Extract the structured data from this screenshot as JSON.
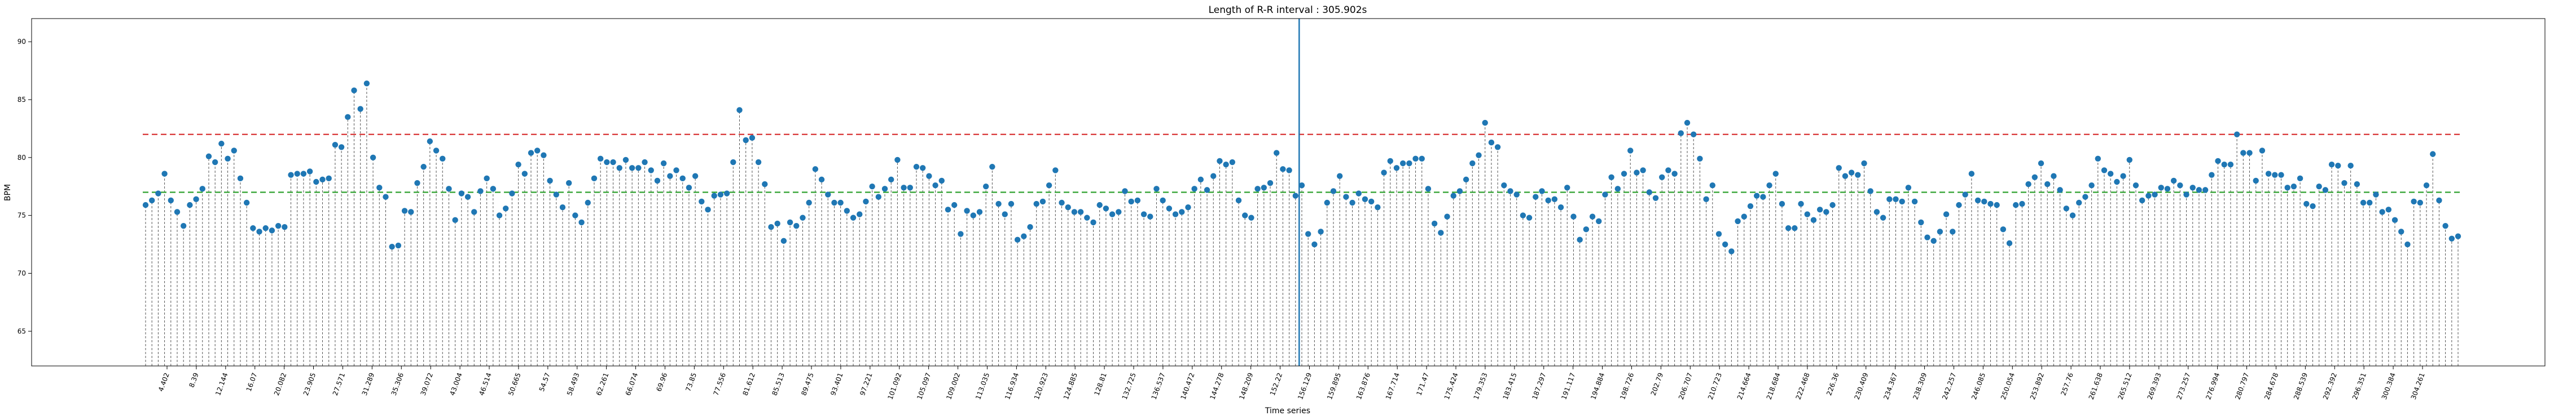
{
  "chart_data": {
    "type": "stem",
    "title": "Length of R-R interval : 305.902s",
    "xlabel": "Time series",
    "ylabel": "BPM",
    "ylim": [
      62,
      92
    ],
    "xlim": [
      0.2,
      305.9
    ],
    "yticks": [
      65,
      70,
      75,
      80,
      85,
      90
    ],
    "xticks": [
      "4.402",
      "8.39",
      "12.144",
      "16.07",
      "20.082",
      "23.905",
      "27.571",
      "31.289",
      "35.306",
      "39.072",
      "43.004",
      "46.514",
      "50.665",
      "54.57",
      "58.493",
      "62.261",
      "66.074",
      "69.96",
      "73.85",
      "77.556",
      "81.612",
      "85.513",
      "89.475",
      "93.401",
      "97.221",
      "101.092",
      "105.097",
      "109.002",
      "113.035",
      "116.934",
      "120.923",
      "124.885",
      "128.81",
      "132.725",
      "136.537",
      "140.472",
      "144.278",
      "148.209",
      "152.22",
      "156.129",
      "159.895",
      "163.876",
      "167.714",
      "171.47",
      "175.424",
      "179.353",
      "183.415",
      "187.297",
      "191.117",
      "194.884",
      "198.726",
      "202.79",
      "206.707",
      "210.723",
      "214.664",
      "218.684",
      "222.468",
      "226.36",
      "230.409",
      "234.367",
      "238.309",
      "242.257",
      "246.085",
      "250.054",
      "253.892",
      "257.76",
      "261.638",
      "265.512",
      "269.393",
      "273.257",
      "276.994",
      "280.797",
      "284.678",
      "288.539",
      "292.392",
      "296.351",
      "300.384",
      "304.261"
    ],
    "reference_lines": {
      "upper": {
        "value": 82,
        "color": "#d62728",
        "style": "dashed"
      },
      "mean": {
        "value": 77,
        "color": "#2ca02c",
        "style": "dashed"
      },
      "marker": {
        "x": 152.7,
        "color": "#1f77b4"
      }
    },
    "series": [
      {
        "x_start": 0.2,
        "x_end": 305.9,
        "color": "#1f77b4",
        "values": [
          75.9,
          76.3,
          76.9,
          78.6,
          76.3,
          75.3,
          74.1,
          75.9,
          76.4,
          77.3,
          80.1,
          79.6,
          81.2,
          79.9,
          80.6,
          78.2,
          76.1,
          73.9,
          73.6,
          73.9,
          73.7,
          74.1,
          74.0,
          78.5,
          78.6,
          78.6,
          78.8,
          77.9,
          78.1,
          78.2,
          81.1,
          80.9,
          83.5,
          85.8,
          84.2,
          86.4,
          80.0,
          77.4,
          76.6,
          72.3,
          72.4,
          75.4,
          75.3,
          77.8,
          79.2,
          81.4,
          80.6,
          79.9,
          77.3,
          74.6,
          76.9,
          76.6,
          75.3,
          77.1,
          78.2,
          77.3,
          75.0,
          75.6,
          76.9,
          79.4,
          78.6,
          80.4,
          80.6,
          80.2,
          78.0,
          76.8,
          75.7,
          77.8,
          75.0,
          74.4,
          76.1,
          78.2,
          79.9,
          79.6,
          79.6,
          79.1,
          79.8,
          79.1,
          79.1,
          79.6,
          78.9,
          78.0,
          79.5,
          78.4,
          78.9,
          78.2,
          77.4,
          78.4,
          76.2,
          75.5,
          76.7,
          76.8,
          76.9,
          79.6,
          84.1,
          81.5,
          81.7,
          79.6,
          77.7,
          74.0,
          74.3,
          72.8,
          74.4,
          74.1,
          74.8,
          76.1,
          79.0,
          78.1,
          76.8,
          76.1,
          76.1,
          75.4,
          74.8,
          75.1,
          76.2,
          77.5,
          76.6,
          77.3,
          78.1,
          79.8,
          77.4,
          77.4,
          79.2,
          79.1,
          78.4,
          77.6,
          78.0,
          75.5,
          75.9,
          73.4,
          75.4,
          75.0,
          75.3,
          77.5,
          79.2,
          76.0,
          75.1,
          76.0,
          72.9,
          73.2,
          74.0,
          76.0,
          76.2,
          77.6,
          78.9,
          76.1,
          75.7,
          75.3,
          75.3,
          74.8,
          74.4,
          75.9,
          75.6,
          75.1,
          75.3,
          77.1,
          76.2,
          76.3,
          75.1,
          74.9,
          77.3,
          76.3,
          75.6,
          75.1,
          75.3,
          75.7,
          77.3,
          78.1,
          77.2,
          78.4,
          79.7,
          79.4,
          79.6,
          76.3,
          75.0,
          74.8,
          77.3,
          77.4,
          77.8,
          80.4,
          79.0,
          78.9,
          76.7,
          77.6,
          73.4,
          72.5,
          73.6,
          76.1,
          77.1,
          78.4,
          76.6,
          76.1,
          76.9,
          76.4,
          76.2,
          75.7,
          78.7,
          79.7,
          79.1,
          79.5,
          79.5,
          79.9,
          79.9,
          77.3,
          74.3,
          73.5,
          74.9,
          76.7,
          77.1,
          78.1,
          79.5,
          80.2,
          83.0,
          81.3,
          80.9,
          77.6,
          77.1,
          76.8,
          75.0,
          74.8,
          76.6,
          77.1,
          76.3,
          76.4,
          75.7,
          77.4,
          74.9,
          72.9,
          73.8,
          74.9,
          74.5,
          76.8,
          78.3,
          77.3,
          78.6,
          80.6,
          78.7,
          78.9,
          77.0,
          76.5,
          78.3,
          78.9,
          78.6,
          82.1,
          83.0,
          82.0,
          79.9,
          76.4,
          77.6,
          73.4,
          72.5,
          71.9,
          74.5,
          74.9,
          75.8,
          76.7,
          76.6,
          77.6,
          78.6,
          76.0,
          73.9,
          73.9,
          76.0,
          75.1,
          74.6,
          75.5,
          75.3,
          75.9,
          79.1,
          78.4,
          78.7,
          78.5,
          79.5,
          77.1,
          75.3,
          74.8,
          76.4,
          76.4,
          76.2,
          77.4,
          76.2,
          74.4,
          73.1,
          72.8,
          73.6,
          75.1,
          73.6,
          75.9,
          76.8,
          78.6,
          76.3,
          76.2,
          76.0,
          75.9,
          73.8,
          72.6,
          75.9,
          76.0,
          77.7,
          78.3,
          79.5,
          77.7,
          78.4,
          77.2,
          75.6,
          75.0,
          76.1,
          76.6,
          77.6,
          79.9,
          78.9,
          78.6,
          77.9,
          78.4,
          79.8,
          77.6,
          76.3,
          76.7,
          76.8,
          77.4,
          77.3,
          78.0,
          77.6,
          76.8,
          77.4,
          77.2,
          77.2,
          78.5,
          79.7,
          79.4,
          79.4,
          82.0,
          80.4,
          80.4,
          78.0,
          80.6,
          78.6,
          78.5,
          78.5,
          77.4,
          77.5,
          78.2,
          76.0,
          75.8,
          77.5,
          77.2,
          79.4,
          79.3,
          77.8,
          79.3,
          77.7,
          76.1,
          76.1,
          76.8,
          75.3,
          75.5,
          74.6,
          73.6,
          72.5,
          76.2,
          76.1,
          77.6,
          80.3,
          76.3,
          74.1,
          73.0,
          73.2
        ]
      }
    ]
  }
}
